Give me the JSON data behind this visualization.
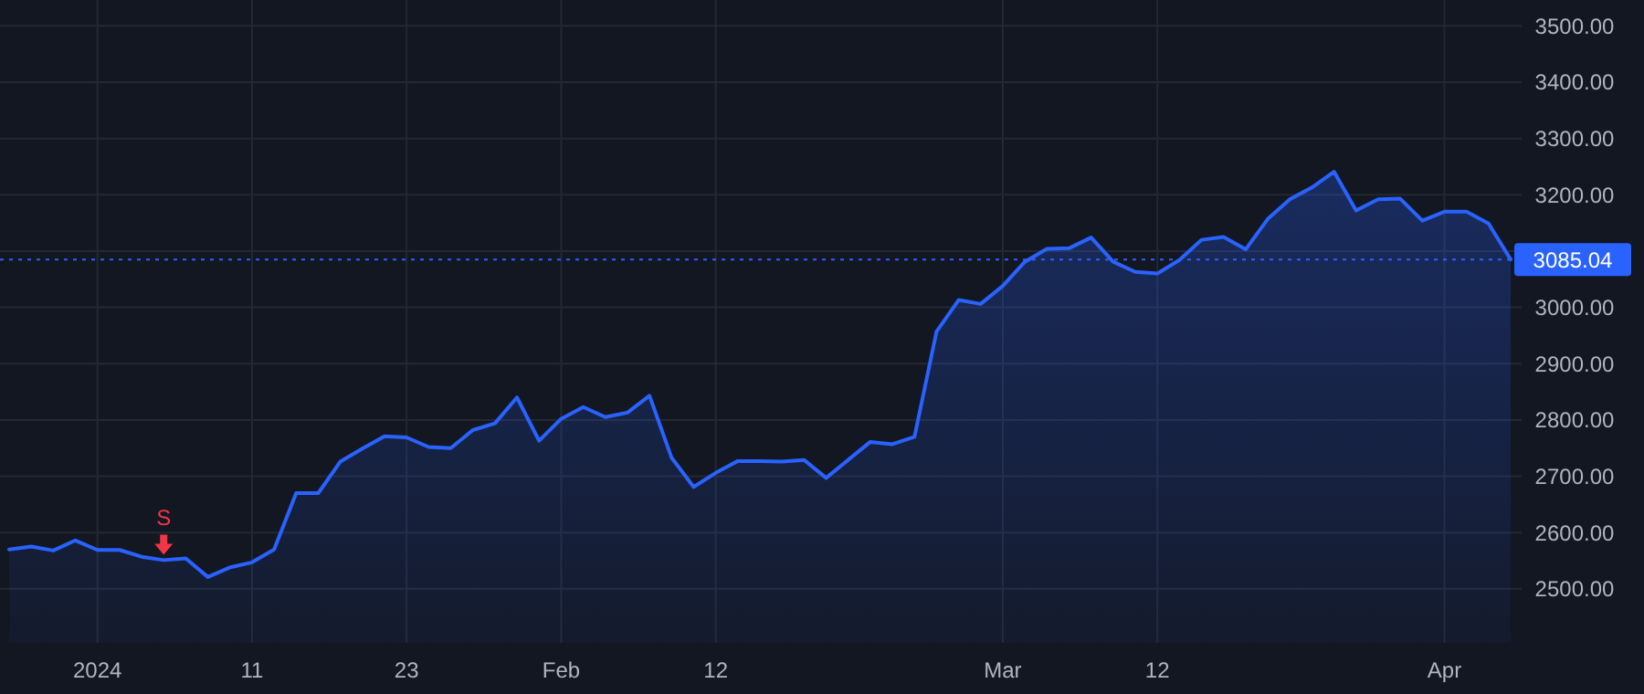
{
  "chart_data": {
    "type": "area",
    "categories": [
      null,
      null,
      null,
      null,
      "2024",
      null,
      null,
      null,
      null,
      null,
      null,
      "11",
      null,
      null,
      null,
      null,
      null,
      null,
      "23",
      null,
      null,
      null,
      null,
      null,
      null,
      "Feb",
      null,
      null,
      null,
      null,
      null,
      null,
      "12",
      null,
      null,
      null,
      null,
      null,
      null,
      null,
      null,
      null,
      null,
      null,
      null,
      "Mar",
      null,
      null,
      null,
      null,
      null,
      null,
      "12",
      null,
      null,
      null,
      null,
      null,
      null,
      null,
      null,
      null,
      null,
      null,
      null,
      "Apr",
      null,
      null,
      null
    ],
    "series": [
      {
        "color": "#2962ff",
        "values": [
          2570,
          2575,
          2568,
          2586,
          2569,
          2569,
          2557,
          2551,
          2554,
          2521,
          2538,
          2547,
          2570,
          2670,
          2670,
          2726,
          2749,
          2771,
          2769,
          2752,
          2750,
          2782,
          2794,
          2840,
          2763,
          2802,
          2823,
          2805,
          2813,
          2843,
          2733,
          2681,
          2706,
          2727,
          2727,
          2726,
          2729,
          2697,
          2729,
          2761,
          2757,
          2770,
          2957,
          3013,
          3006,
          3038,
          3081,
          3104,
          3105,
          3124,
          3081,
          3063,
          3060,
          3084,
          3120,
          3125,
          3103,
          3157,
          3192,
          3213,
          3241,
          3172,
          3192,
          3193,
          3154,
          3170,
          3170,
          3149,
          3085.04
        ]
      }
    ],
    "ylim": [
      2404,
      3546
    ],
    "yticks": [
      {
        "value": 2500,
        "label": "2500.00"
      },
      {
        "value": 2600,
        "label": "2600.00"
      },
      {
        "value": 2700,
        "label": "2700.00"
      },
      {
        "value": 2800,
        "label": "2800.00"
      },
      {
        "value": 2900,
        "label": "2900.00"
      },
      {
        "value": 3000,
        "label": "3000.00"
      },
      {
        "value": 3100,
        "label": null
      },
      {
        "value": 3200,
        "label": "3200.00"
      },
      {
        "value": 3300,
        "label": "3300.00"
      },
      {
        "value": 3400,
        "label": "3400.00"
      },
      {
        "value": 3500,
        "label": "3500.00"
      }
    ],
    "ref_lines": [
      {
        "axis": "y",
        "value": 3085.04,
        "label": "3085.04",
        "color": "#2962ff",
        "line_style": "dotted"
      }
    ],
    "annotations": [
      {
        "text": "S",
        "y": 2551
      }
    ],
    "grid": true
  }
}
